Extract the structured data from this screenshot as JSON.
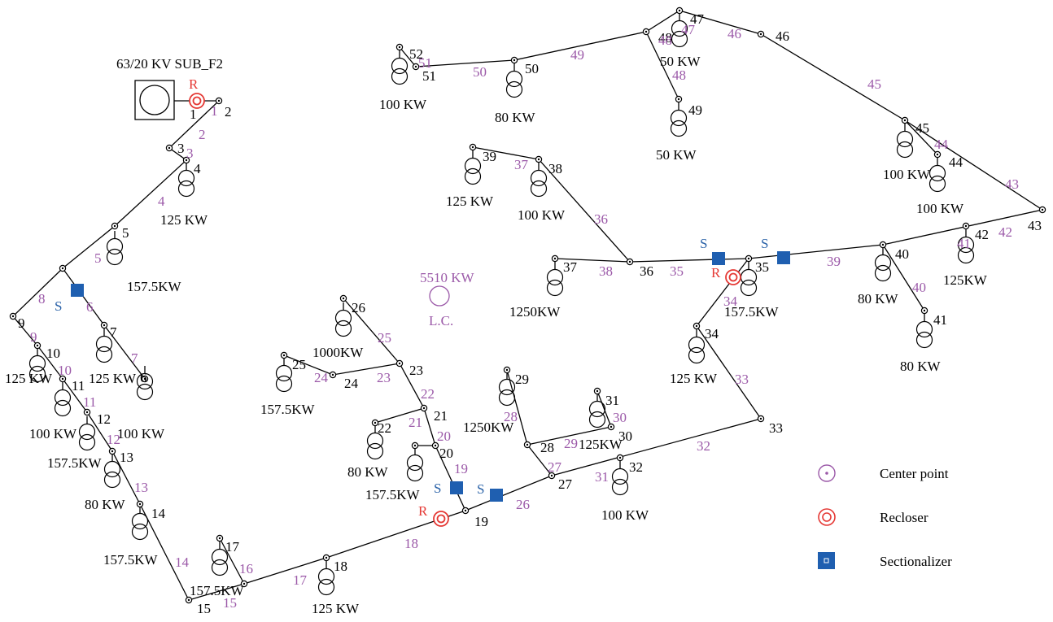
{
  "substation_label": "63/20 KV SUB_F2",
  "total_load": {
    "value": "5510 KW",
    "caption": "L.C."
  },
  "colors": {
    "line": "#000000",
    "segment_label": "#9b59a8",
    "recloser": "#e53935",
    "sectionalizer": "#1f5fb0",
    "sectionalizer_text": "#2a62a8",
    "center_point": "#9b59a8"
  },
  "switch_letters": {
    "recloser": "R",
    "sectionalizer": "S"
  },
  "legend": [
    {
      "icon": "center-point-icon",
      "label": "Center point"
    },
    {
      "icon": "recloser-icon",
      "label": "Recloser"
    },
    {
      "icon": "sectionalizer-icon",
      "label": "Sectionalizer"
    }
  ],
  "buses": [
    "1",
    "2",
    "3",
    "4",
    "5",
    "6",
    "7",
    "9",
    "10",
    "11",
    "12",
    "13",
    "14",
    "15",
    "17",
    "18",
    "19",
    "20",
    "21",
    "22",
    "23",
    "24",
    "25",
    "26",
    "27",
    "28",
    "29",
    "30",
    "31",
    "32",
    "33",
    "34",
    "35",
    "36",
    "37",
    "38",
    "39",
    "40",
    "41",
    "42",
    "43",
    "44",
    "45",
    "46",
    "47",
    "48",
    "49",
    "50",
    "51",
    "52"
  ],
  "segments": [
    "1",
    "2",
    "3",
    "4",
    "5",
    "6",
    "7",
    "8",
    "9",
    "10",
    "11",
    "12",
    "13",
    "14",
    "15",
    "16",
    "17",
    "18",
    "19",
    "20",
    "21",
    "22",
    "23",
    "24",
    "25",
    "26",
    "27",
    "28",
    "29",
    "30",
    "31",
    "32",
    "33",
    "34",
    "35",
    "36",
    "37",
    "38",
    "39",
    "40",
    "41",
    "42",
    "43",
    "44",
    "45",
    "46",
    "47",
    "48",
    "48",
    "49",
    "50",
    "51"
  ],
  "loads": [
    "125 KW",
    "157.5KW",
    "125 KW",
    "100 KW",
    "125 KW",
    "100 KW",
    "157.5KW",
    "80 KW",
    "157.5KW",
    "157.5KW",
    "125 KW",
    "157.5KW",
    "80 KW",
    "157.5KW",
    "1000KW",
    "1250KW",
    "125KW",
    "100 KW",
    "125 KW",
    "157.5KW",
    "1250KW",
    "100 KW",
    "125 KW",
    "80 KW",
    "80 KW",
    "125KW",
    "100 KW",
    "100 KW",
    "50 KW",
    "50 KW",
    "80 KW",
    "100 KW"
  ]
}
